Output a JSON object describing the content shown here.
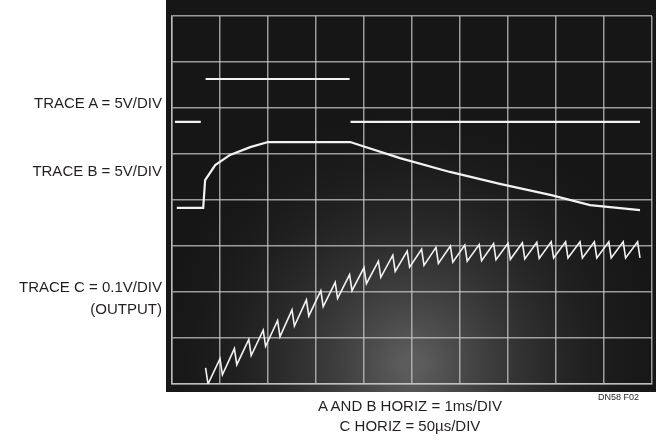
{
  "chart_data": {
    "type": "line",
    "xlim": [
      0,
      10
    ],
    "ylim": [
      0,
      8
    ],
    "xticks": [
      0,
      1,
      2,
      3,
      4,
      5,
      6,
      7,
      8,
      9,
      10
    ],
    "yticks": [
      0,
      1,
      2,
      3,
      4,
      5,
      6,
      7,
      8
    ],
    "grid": true,
    "tick_labels": false,
    "x_label": [
      "A AND B HORIZ = 1ms/DIV",
      "C HORIZ = 50µs/DIV"
    ],
    "annotations": [
      "DN58 F02"
    ],
    "series": [
      {
        "name": "TRACE A = 5V/DIV",
        "color": "#f2f2f2",
        "x": [
          0.06,
          0.6,
          0.65,
          0.7,
          3.7,
          3.71,
          3.72,
          9.75
        ],
        "values": [
          5.7,
          5.7,
          null,
          6.63,
          6.63,
          null,
          5.7,
          5.7
        ]
      },
      {
        "name": "TRACE B = 5V/DIV",
        "color": "#f2f2f2",
        "x": [
          0.1,
          0.65,
          0.69,
          0.9,
          1.21,
          1.63,
          2.0,
          3.71,
          4.75,
          5.79,
          6.83,
          7.88,
          8.71,
          9.75
        ],
        "values": [
          3.83,
          3.83,
          4.43,
          4.76,
          4.98,
          5.15,
          5.26,
          5.26,
          4.91,
          4.61,
          4.35,
          4.11,
          3.89,
          3.78
        ]
      },
      {
        "name": "TRACE C = 0.1V/DIV (OUTPUT)",
        "color": "#f2f2f2",
        "x": [
          0.7,
          0.75,
          1,
          1.05,
          1.3,
          1.35,
          1.6,
          1.65,
          1.9,
          1.95,
          2.2,
          2.25,
          2.5,
          2.55,
          2.8,
          2.85,
          3.1,
          3.15,
          3.4,
          3.45,
          3.7,
          3.75,
          4,
          4.05,
          4.3,
          4.35,
          4.6,
          4.65,
          4.9,
          4.95,
          5.2,
          5.25,
          5.5,
          5.55,
          5.8,
          5.85,
          6.1,
          6.15,
          6.4,
          6.45,
          6.7,
          6.75,
          7,
          7.05,
          7.3,
          7.35,
          7.6,
          7.65,
          7.9,
          7.95,
          8.2,
          8.25,
          8.5,
          8.55,
          8.8,
          8.85,
          9.1,
          9.15,
          9.4,
          9.45,
          9.7,
          9.75
        ],
        "values": [
          0.35,
          0.0,
          0.55,
          0.2,
          0.77,
          0.42,
          0.97,
          0.62,
          1.17,
          0.82,
          1.38,
          1.03,
          1.61,
          1.26,
          1.83,
          1.48,
          2.03,
          1.68,
          2.21,
          1.86,
          2.38,
          2.03,
          2.53,
          2.18,
          2.67,
          2.32,
          2.8,
          2.45,
          2.89,
          2.54,
          2.93,
          2.58,
          2.97,
          2.62,
          3.0,
          2.65,
          3.02,
          2.67,
          3.03,
          2.68,
          3.05,
          2.7,
          3.06,
          2.71,
          3.07,
          2.72,
          3.08,
          2.73,
          3.09,
          2.74,
          3.09,
          2.74,
          3.09,
          2.74,
          3.09,
          2.74,
          3.09,
          2.74,
          3.09,
          2.74,
          3.09,
          2.74
        ]
      }
    ]
  }
}
